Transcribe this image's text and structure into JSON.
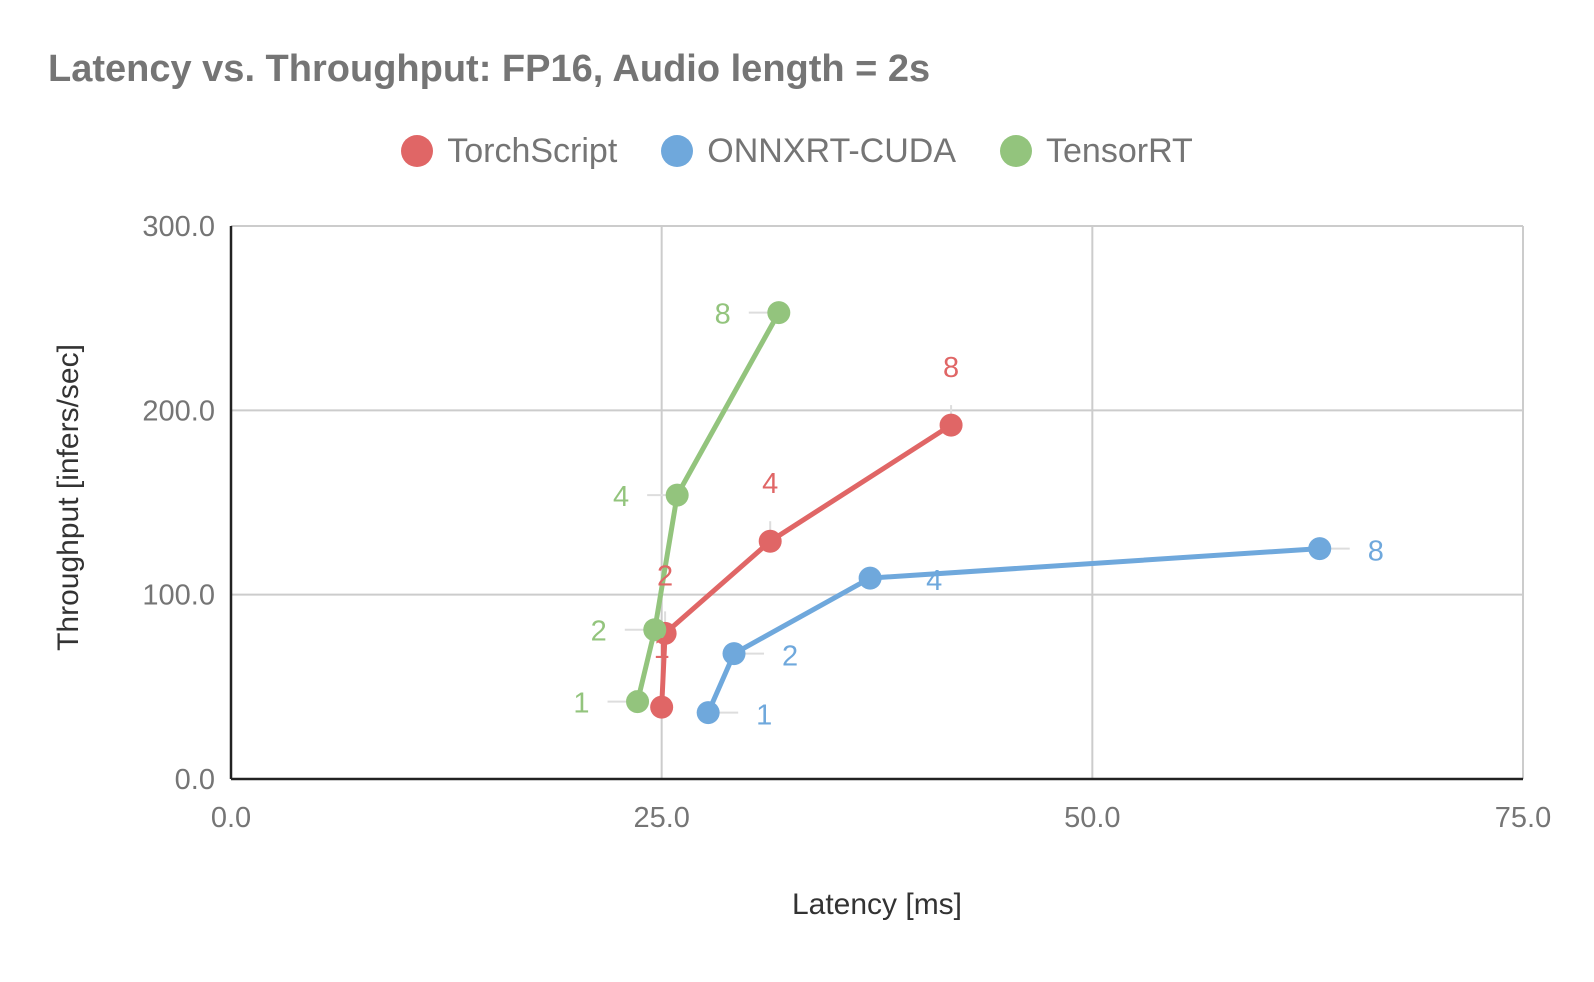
{
  "chart_data": {
    "type": "scatter",
    "title": "Latency vs. Throughput: FP16, Audio length = 2s",
    "xlabel": "Latency [ms]",
    "ylabel": "Throughput [infers/sec]",
    "xlim": [
      0,
      75
    ],
    "ylim": [
      0,
      300
    ],
    "xticks": [
      "0.0",
      "25.0",
      "50.0",
      "75.0"
    ],
    "yticks": [
      "0.0",
      "100.0",
      "200.0",
      "300.0"
    ],
    "grid": true,
    "legend_position": "top-center",
    "series": [
      {
        "name": "TorchScript",
        "color": "#e06666",
        "points": [
          {
            "x": 25.0,
            "y": 39,
            "label": "1"
          },
          {
            "x": 25.2,
            "y": 79,
            "label": "2"
          },
          {
            "x": 31.3,
            "y": 129,
            "label": "4"
          },
          {
            "x": 41.8,
            "y": 192,
            "label": "8"
          }
        ]
      },
      {
        "name": "ONNXRT-CUDA",
        "color": "#6fa8dc",
        "points": [
          {
            "x": 27.7,
            "y": 36,
            "label": "1"
          },
          {
            "x": 29.2,
            "y": 68,
            "label": "2"
          },
          {
            "x": 37.1,
            "y": 109,
            "label": "4"
          },
          {
            "x": 63.2,
            "y": 125,
            "label": "8"
          }
        ]
      },
      {
        "name": "TensorRT",
        "color": "#93c47d",
        "points": [
          {
            "x": 23.6,
            "y": 42,
            "label": "1"
          },
          {
            "x": 24.6,
            "y": 81,
            "label": "2"
          },
          {
            "x": 25.9,
            "y": 154,
            "label": "4"
          },
          {
            "x": 31.8,
            "y": 253,
            "label": "8"
          }
        ]
      }
    ]
  }
}
